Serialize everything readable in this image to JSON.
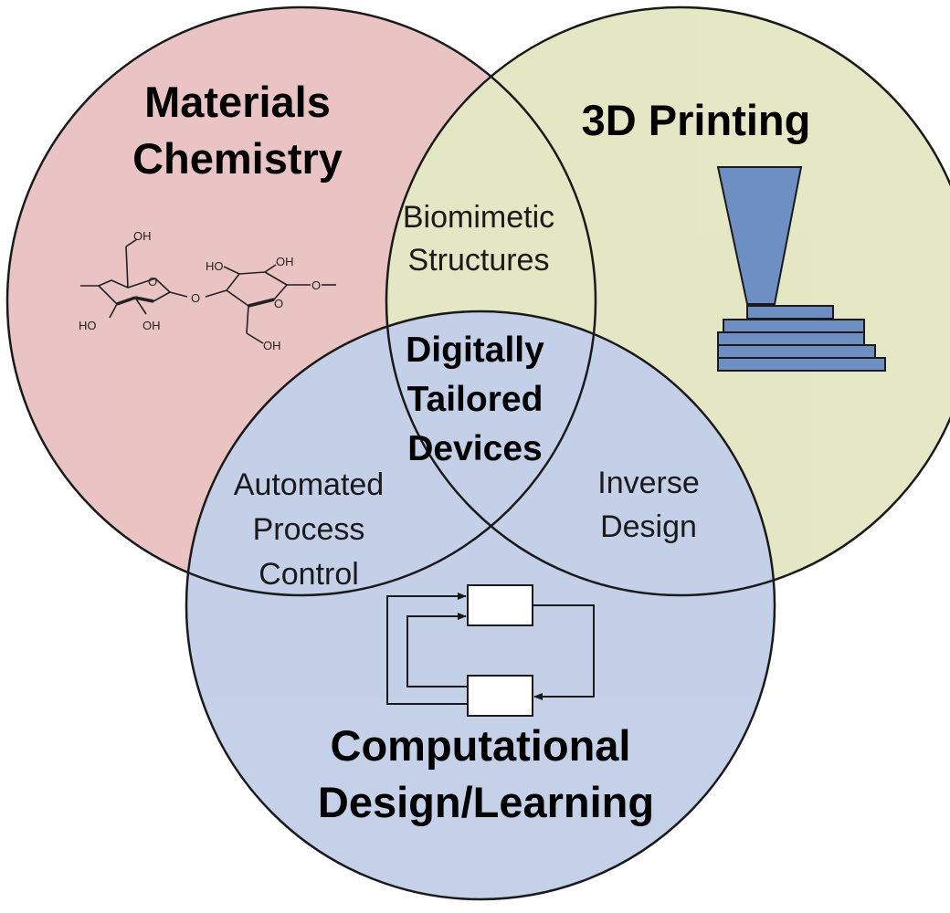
{
  "colors": {
    "materials_chemistry_fill": "#e7c3c2",
    "printing_fill": "#e3e8c7",
    "computational_fill": "#c5d2e8",
    "printer_blue": "#6e8fc4",
    "outline": "#1a1a1a"
  },
  "circles": {
    "materials_chemistry": {
      "title_line1": "Materials",
      "title_line2": "Chemistry",
      "icon": "cellulose-molecule-icon",
      "molecule_labels": [
        "OH",
        "OH",
        "HO",
        "HO",
        "OH",
        "HO",
        "O",
        "O",
        "O",
        "O",
        "OH"
      ]
    },
    "printing": {
      "title": "3D Printing",
      "icon": "3d-printer-nozzle-icon"
    },
    "computational": {
      "title_line1": "Computational",
      "title_line2": "Design/Learning",
      "icon": "feedback-loop-icon"
    }
  },
  "overlaps": {
    "chem_print_line1": "Biomimetic",
    "chem_print_line2": "Structures",
    "chem_comp_line1": "Automated",
    "chem_comp_line2": "Process",
    "chem_comp_line3": "Control",
    "print_comp_line1": "Inverse",
    "print_comp_line2": "Design",
    "center_line1": "Digitally",
    "center_line2": "Tailored",
    "center_line3": "Devices"
  }
}
